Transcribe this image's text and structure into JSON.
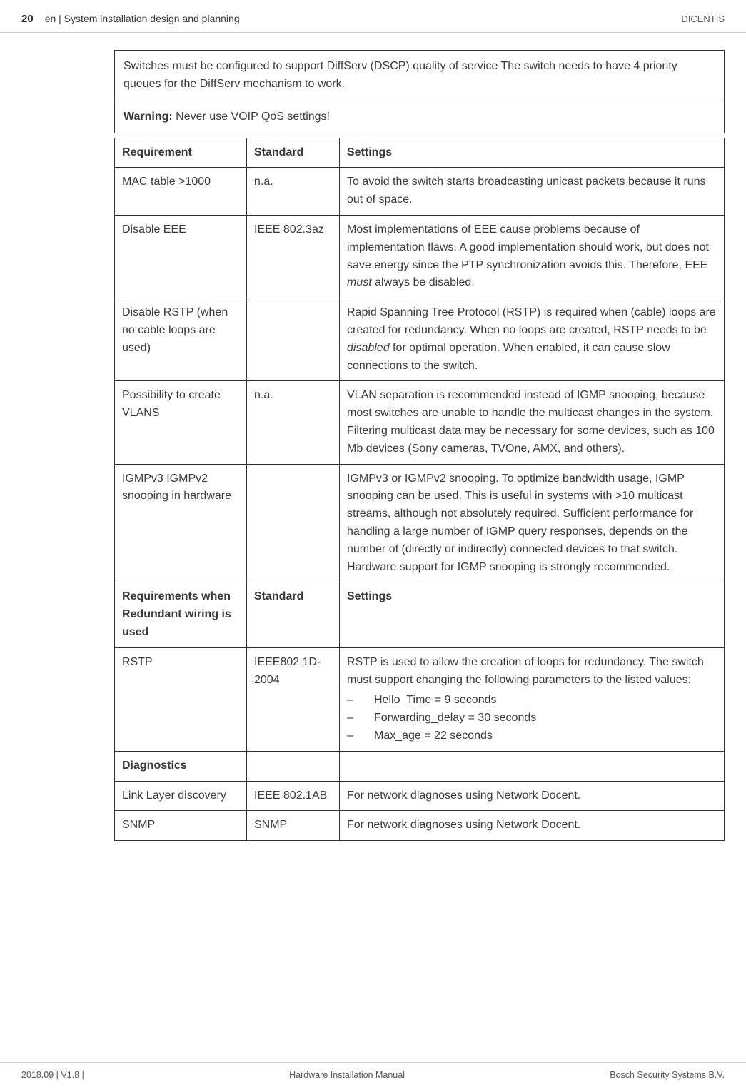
{
  "header": {
    "page_number": "20",
    "title": "en | System installation design and planning",
    "right": "DICENTIS"
  },
  "intro": "Switches must be configured to support DiffServ (DSCP) quality of service The switch needs to have 4 priority queues for the DiffServ mechanism to work.",
  "warning_label": "Warning:",
  "warning_text": " Never use VOIP QoS settings!",
  "table": {
    "headers": [
      "Requirement",
      "Standard",
      "Settings"
    ],
    "rows": [
      {
        "req": "MAC table >1000",
        "std": "n.a.",
        "set": "To avoid the switch starts broadcasting unicast packets because it runs out of space."
      },
      {
        "req": "Disable EEE",
        "std": "IEEE 802.3az",
        "set_pre": "Most implementations of EEE cause problems because of implementation flaws. A good implementation should work, but does not save energy since the PTP synchronization avoids this. Therefore, EEE ",
        "set_em": "must",
        "set_post": " always be disabled."
      },
      {
        "req": "Disable RSTP (when no cable loops are used)",
        "std": "",
        "set_pre": "Rapid Spanning Tree Protocol (RSTP) is required when (cable) loops are created for redundancy. When no loops are created, RSTP needs to be ",
        "set_em": "disabled",
        "set_post": " for optimal operation. When enabled, it can cause slow connections to the switch."
      },
      {
        "req": "Possibility to create VLANS",
        "std": "n.a.",
        "set": "VLAN separation is recommended instead of IGMP snooping, because most switches are unable to handle the multicast changes in the system. Filtering multicast data may be necessary for some devices, such as 100 Mb devices (Sony cameras, TVOne, AMX, and others)."
      },
      {
        "req": "IGMPv3 IGMPv2 snooping in hardware",
        "std": "",
        "set": "IGMPv3 or IGMPv2 snooping. To optimize bandwidth usage, IGMP snooping can be used. This is useful in systems with >10 multicast streams, although not absolutely required. Sufficient performance for handling a large number of IGMP query responses, depends on the number of (directly or indirectly) connected devices to that switch. Hardware support for IGMP snooping is strongly recommended."
      }
    ],
    "section2_header": {
      "req": "Requirements when Redundant wiring is used",
      "std": "Standard",
      "set": "Settings"
    },
    "rstp": {
      "req": "RSTP",
      "std": "IEEE802.1D-2004",
      "set_intro": "RSTP is used to allow the creation of loops for redundancy. The switch must support changing the following parameters to the listed values:",
      "items": [
        "Hello_Time = 9 seconds",
        "Forwarding_delay = 30 seconds",
        "Max_age = 22 seconds"
      ]
    },
    "diagnostics_label": "Diagnostics",
    "lld": {
      "req": "Link Layer discovery",
      "std": "IEEE 802.1AB",
      "set": "For network diagnoses using Network Docent."
    },
    "snmp": {
      "req": "SNMP",
      "std": "SNMP",
      "set": "For network diagnoses using Network Docent."
    }
  },
  "footer": {
    "left": "2018.09 | V1.8 |",
    "center": "Hardware Installation Manual",
    "right": "Bosch Security Systems B.V."
  }
}
